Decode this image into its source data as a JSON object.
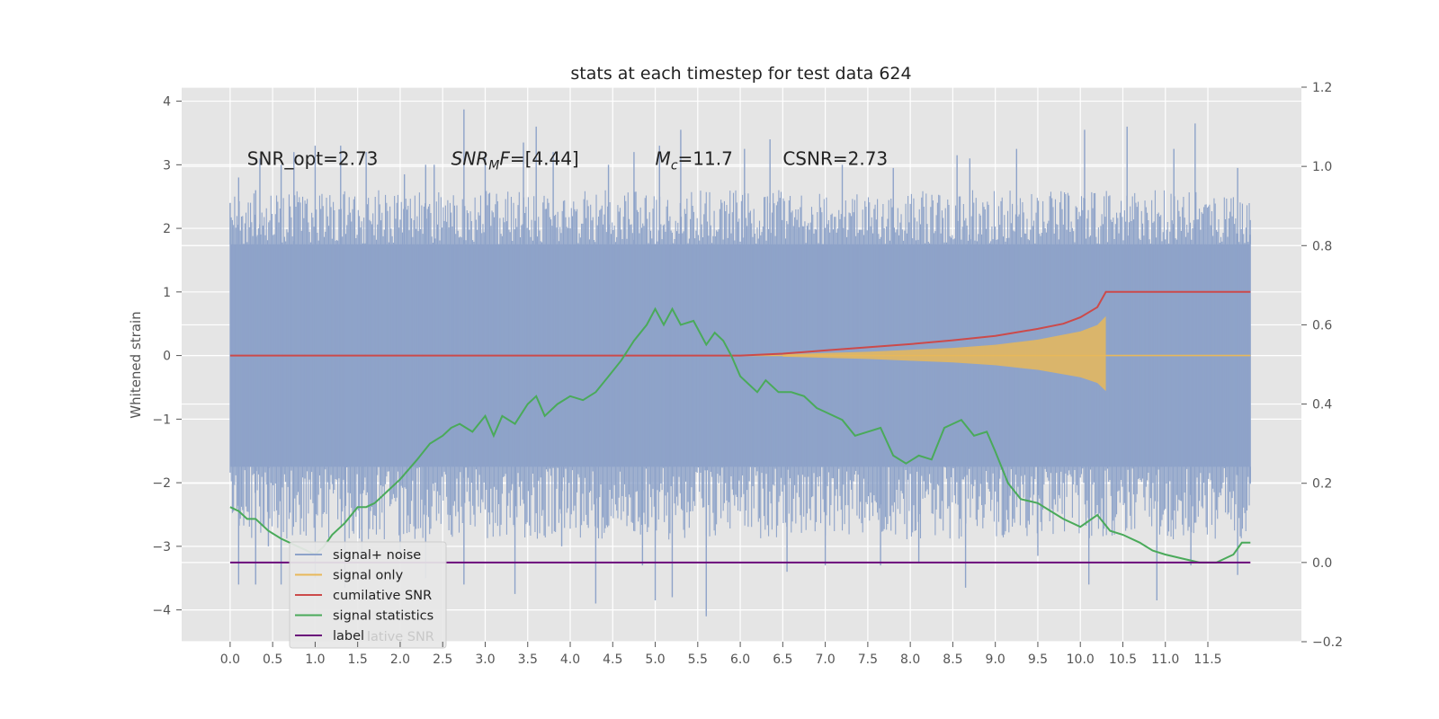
{
  "chart_data": {
    "type": "line",
    "title": "stats at each timestep for test data 624",
    "ylabel": "Whitened strain",
    "xlabel": "",
    "xlim": [
      -0.57,
      12.6
    ],
    "ylim": [
      -4.5,
      4.22
    ],
    "ylim_right": [
      -0.2,
      1.2
    ],
    "xticks": [
      0.0,
      0.5,
      1.0,
      1.5,
      2.0,
      2.5,
      3.0,
      3.5,
      4.0,
      4.5,
      5.0,
      5.5,
      6.0,
      6.5,
      7.0,
      7.5,
      8.0,
      8.5,
      9.0,
      9.5,
      10.0,
      10.5,
      11.0,
      11.5
    ],
    "xtick_labels": [
      "0.0",
      "0.5",
      "1.0",
      "1.5",
      "2.0",
      "2.5",
      "3.0",
      "3.5",
      "4.0",
      "4.5",
      "5.0",
      "5.5",
      "6.0",
      "6.5",
      "7.0",
      "7.5",
      "8.0",
      "8.5",
      "9.0",
      "9.5",
      "10.0",
      "10.5",
      "11.0",
      "11.5"
    ],
    "yticks": [
      -4,
      -3,
      -2,
      -1,
      0,
      1,
      2,
      3,
      4
    ],
    "ytick_labels": [
      "−4",
      "−3",
      "−2",
      "−1",
      "0",
      "1",
      "2",
      "3",
      "4"
    ],
    "yticks_right": [
      -0.2,
      0.0,
      0.2,
      0.4,
      0.6,
      0.8,
      1.0,
      1.2
    ],
    "ytick_labels_right": [
      "−0.2",
      "0.0",
      "0.2",
      "0.4",
      "0.6",
      "0.8",
      "1.0",
      "1.2"
    ],
    "grid": true,
    "legend_position": "lower-left",
    "annotations": [
      {
        "x": 0.2,
        "y": 3.0,
        "parts": [
          {
            "t": "SNR_opt=2.73",
            "s": "n"
          }
        ]
      },
      {
        "x": 2.6,
        "y": 3.0,
        "parts": [
          {
            "t": "SNR",
            "s": "i"
          },
          {
            "t": "M",
            "s": "isub"
          },
          {
            "t": "F",
            "s": "i"
          },
          {
            "t": "=[4.44]",
            "s": "n"
          }
        ]
      },
      {
        "x": 5.0,
        "y": 3.0,
        "parts": [
          {
            "t": "M",
            "s": "i"
          },
          {
            "t": "c",
            "s": "isub"
          },
          {
            "t": "=11.7",
            "s": "n"
          }
        ]
      },
      {
        "x": 6.5,
        "y": 3.0,
        "parts": [
          {
            "t": "CSNR=2.73",
            "s": "n"
          }
        ]
      }
    ],
    "colors": {
      "axes_bg": "#e5e5e5",
      "grid": "#ffffff",
      "noise": "#8ea3c9",
      "signal": "#e8b85a",
      "cumulative": "#cc4a4a",
      "statistics": "#4aaa5a",
      "label": "#6a0a7a"
    },
    "series": [
      {
        "name": "signal+ noise",
        "axis": "left",
        "style": "noise",
        "x_range": [
          0.0,
          12.0
        ],
        "band": [
          -1.75,
          1.75
        ],
        "upper_spikes": [
          [
            0.0,
            2.4
          ],
          [
            0.1,
            2.8
          ],
          [
            0.3,
            2.6
          ],
          [
            0.35,
            3.1
          ],
          [
            0.6,
            3.0
          ],
          [
            0.75,
            3.2
          ],
          [
            1.0,
            3.3
          ],
          [
            1.3,
            3.3
          ],
          [
            1.6,
            3.2
          ],
          [
            2.05,
            2.85
          ],
          [
            2.3,
            3.0
          ],
          [
            2.4,
            3.0
          ],
          [
            2.75,
            3.87
          ],
          [
            3.0,
            3.2
          ],
          [
            3.45,
            3.35
          ],
          [
            3.6,
            3.6
          ],
          [
            3.8,
            3.2
          ],
          [
            4.45,
            3.0
          ],
          [
            4.75,
            3.2
          ],
          [
            5.05,
            3.3
          ],
          [
            5.3,
            3.55
          ],
          [
            6.05,
            3.25
          ],
          [
            6.35,
            3.4
          ],
          [
            7.2,
            3.0
          ],
          [
            7.8,
            2.95
          ],
          [
            8.55,
            3.15
          ],
          [
            8.7,
            3.1
          ],
          [
            9.25,
            3.25
          ],
          [
            10.05,
            3.55
          ],
          [
            10.55,
            3.6
          ],
          [
            11.1,
            3.25
          ],
          [
            11.35,
            3.65
          ],
          [
            11.85,
            2.95
          ],
          [
            12.0,
            1.9
          ]
        ],
        "lower_spikes": [
          [
            0.1,
            -3.6
          ],
          [
            0.3,
            -3.6
          ],
          [
            0.45,
            -3.0
          ],
          [
            0.6,
            -3.6
          ],
          [
            1.0,
            -3.5
          ],
          [
            1.35,
            -3.65
          ],
          [
            1.55,
            -3.2
          ],
          [
            2.0,
            -3.2
          ],
          [
            2.3,
            -3.5
          ],
          [
            2.75,
            -3.6
          ],
          [
            3.35,
            -3.75
          ],
          [
            3.9,
            -3.0
          ],
          [
            4.3,
            -3.9
          ],
          [
            4.85,
            -3.3
          ],
          [
            5.0,
            -3.85
          ],
          [
            5.2,
            -3.8
          ],
          [
            5.6,
            -4.1
          ],
          [
            6.55,
            -3.4
          ],
          [
            7.0,
            -3.3
          ],
          [
            7.65,
            -3.3
          ],
          [
            8.1,
            -3.25
          ],
          [
            8.65,
            -3.65
          ],
          [
            9.5,
            -3.15
          ],
          [
            10.1,
            -3.6
          ],
          [
            10.9,
            -3.85
          ],
          [
            11.3,
            -3.3
          ],
          [
            11.85,
            -3.45
          ],
          [
            12.0,
            -2.0
          ]
        ],
        "x": [],
        "y": []
      },
      {
        "name": "signal only",
        "axis": "left",
        "style": "chirp",
        "x": [
          6.5,
          7.0,
          7.5,
          8.0,
          8.5,
          9.0,
          9.5,
          10.0,
          10.2,
          10.3
        ],
        "amplitude": [
          0.02,
          0.04,
          0.06,
          0.09,
          0.12,
          0.17,
          0.25,
          0.38,
          0.48,
          0.62
        ],
        "y_after": 0.0
      },
      {
        "name": "cumilative SNR",
        "axis": "left",
        "style": "line",
        "x": [
          0.0,
          6.0,
          6.5,
          7.0,
          7.5,
          8.0,
          8.5,
          9.0,
          9.5,
          9.8,
          10.0,
          10.2,
          10.3,
          11.0,
          12.0
        ],
        "y": [
          0.0,
          0.0,
          0.03,
          0.08,
          0.13,
          0.18,
          0.24,
          0.31,
          0.42,
          0.5,
          0.6,
          0.76,
          1.0,
          1.0,
          1.0
        ]
      },
      {
        "name": "signal statistics",
        "axis": "right",
        "style": "line",
        "x": [
          0.0,
          0.1,
          0.2,
          0.3,
          0.45,
          0.6,
          0.8,
          1.0,
          1.1,
          1.2,
          1.35,
          1.5,
          1.6,
          1.7,
          1.85,
          2.0,
          2.2,
          2.35,
          2.5,
          2.6,
          2.7,
          2.85,
          3.0,
          3.1,
          3.2,
          3.35,
          3.5,
          3.6,
          3.7,
          3.85,
          4.0,
          4.15,
          4.3,
          4.45,
          4.6,
          4.75,
          4.9,
          5.0,
          5.1,
          5.2,
          5.3,
          5.45,
          5.6,
          5.7,
          5.8,
          5.9,
          6.0,
          6.1,
          6.2,
          6.3,
          6.45,
          6.6,
          6.75,
          6.9,
          7.0,
          7.2,
          7.35,
          7.5,
          7.65,
          7.8,
          7.95,
          8.1,
          8.25,
          8.4,
          8.6,
          8.75,
          8.9,
          9.0,
          9.15,
          9.3,
          9.5,
          9.65,
          9.8,
          10.0,
          10.2,
          10.35,
          10.5,
          10.7,
          10.85,
          11.0,
          11.2,
          11.4,
          11.6,
          11.8,
          11.9,
          12.0
        ],
        "y": [
          0.14,
          0.13,
          0.11,
          0.11,
          0.08,
          0.06,
          0.04,
          0.02,
          0.04,
          0.07,
          0.1,
          0.14,
          0.14,
          0.15,
          0.18,
          0.21,
          0.26,
          0.3,
          0.32,
          0.34,
          0.35,
          0.33,
          0.37,
          0.32,
          0.37,
          0.35,
          0.4,
          0.42,
          0.37,
          0.4,
          0.42,
          0.41,
          0.43,
          0.47,
          0.51,
          0.56,
          0.6,
          0.64,
          0.6,
          0.64,
          0.6,
          0.61,
          0.55,
          0.58,
          0.56,
          0.52,
          0.47,
          0.45,
          0.43,
          0.46,
          0.43,
          0.43,
          0.42,
          0.39,
          0.38,
          0.36,
          0.32,
          0.33,
          0.34,
          0.27,
          0.25,
          0.27,
          0.26,
          0.34,
          0.36,
          0.32,
          0.33,
          0.28,
          0.2,
          0.16,
          0.15,
          0.13,
          0.11,
          0.09,
          0.12,
          0.08,
          0.07,
          0.05,
          0.03,
          0.02,
          0.01,
          0.0,
          0.0,
          0.02,
          0.05,
          0.05
        ]
      },
      {
        "name": "label",
        "axis": "right",
        "style": "line",
        "x": [
          0.0,
          12.0
        ],
        "y": [
          0.0,
          0.0
        ]
      }
    ],
    "legend": [
      {
        "label": "signal+ noise",
        "color_key": "noise"
      },
      {
        "label": "signal only",
        "color_key": "signal"
      },
      {
        "label": "cumilative SNR",
        "color_key": "cumulative"
      },
      {
        "label": "signal statistics",
        "color_key": "statistics"
      },
      {
        "label": "label",
        "color_key": "label"
      }
    ],
    "legend_ghost_text": "lative SNR"
  }
}
